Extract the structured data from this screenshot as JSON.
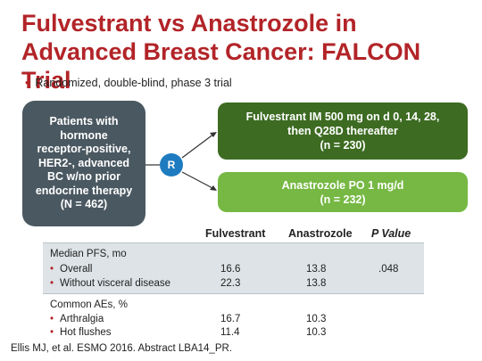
{
  "title": "Fulvestrant vs Anastrozole in Advanced Breast Cancer: FALCON Trial",
  "bullet": "Randomized, double-blind, phase 3 trial",
  "patients": [
    "Patients with",
    "hormone",
    "receptor-positive,",
    "HER2-, advanced",
    "BC w/no prior",
    "endocrine therapy",
    "(N = 462)"
  ],
  "randomize": "R",
  "arm1": {
    "line1": "Fulvestrant IM 500 mg on d 0, 14, 28,",
    "line2": "then Q28D thereafter",
    "line3": "(n = 230)"
  },
  "arm2": {
    "line1": "Anastrozole PO 1 mg/d",
    "line2": "(n = 232)"
  },
  "table": {
    "headers": {
      "col1": "Fulvestrant",
      "col2": "Anastrozole",
      "col3": "P Value"
    },
    "sections": [
      {
        "heading": "Median PFS, mo",
        "rows": [
          {
            "label": "Overall",
            "fulvestrant": "16.6",
            "anastrozole": "13.8",
            "p": ".048"
          },
          {
            "label": "Without visceral disease",
            "fulvestrant": "22.3",
            "anastrozole": "13.8",
            "p": ""
          }
        ]
      },
      {
        "heading": "Common AEs, %",
        "rows": [
          {
            "label": "Arthralgia",
            "fulvestrant": "16.7",
            "anastrozole": "10.3",
            "p": ""
          },
          {
            "label": "Hot flushes",
            "fulvestrant": "11.4",
            "anastrozole": "10.3",
            "p": ""
          }
        ]
      }
    ]
  },
  "citation": "Ellis MJ, et al. ESMO 2016. Abstract LBA14_PR.",
  "colors": {
    "title": "#b22428",
    "patients_box": "#4a5861",
    "r_circle": "#1f7bbf",
    "arm1": "#3d6b22",
    "arm2": "#76b843",
    "band": "#dde3e6"
  }
}
